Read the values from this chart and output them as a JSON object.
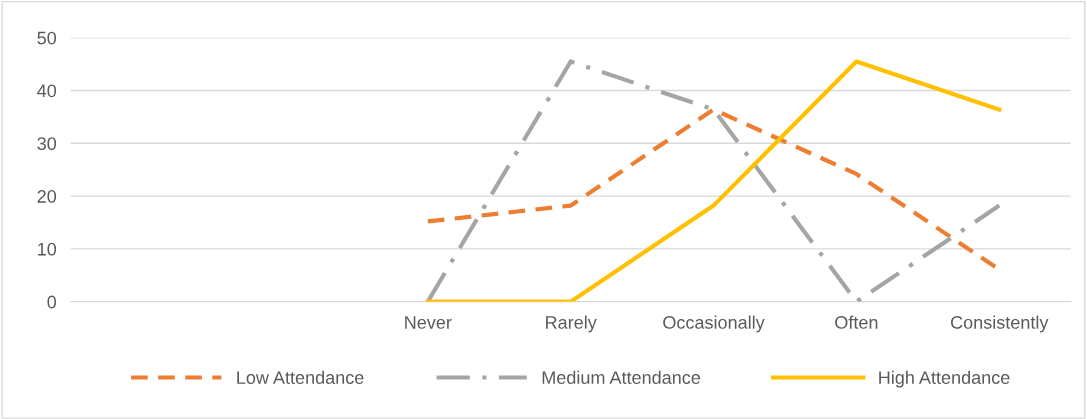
{
  "chart_data": {
    "type": "line",
    "categories": [
      null,
      null,
      "Never",
      "Rarely",
      "Occasionally",
      "Often",
      "Consistently"
    ],
    "series": [
      {
        "name": "Low Attendance",
        "color": "#ed7d31",
        "line_style": "dashed",
        "values": [
          null,
          null,
          15.2,
          18.2,
          36.4,
          24.2,
          6.1
        ]
      },
      {
        "name": "Medium Attendance",
        "color": "#a5a5a5",
        "line_style": "dashdot",
        "values": [
          null,
          null,
          0,
          45.5,
          36.4,
          0,
          18.2
        ]
      },
      {
        "name": "High Attendance",
        "color": "#ffc000",
        "line_style": "solid",
        "values": [
          null,
          null,
          0,
          0,
          18.2,
          45.5,
          36.4
        ]
      }
    ],
    "ylim": [
      0,
      50
    ],
    "yticks": [
      0,
      10,
      20,
      30,
      40,
      50
    ],
    "grid": "y",
    "legend": "bottom"
  }
}
